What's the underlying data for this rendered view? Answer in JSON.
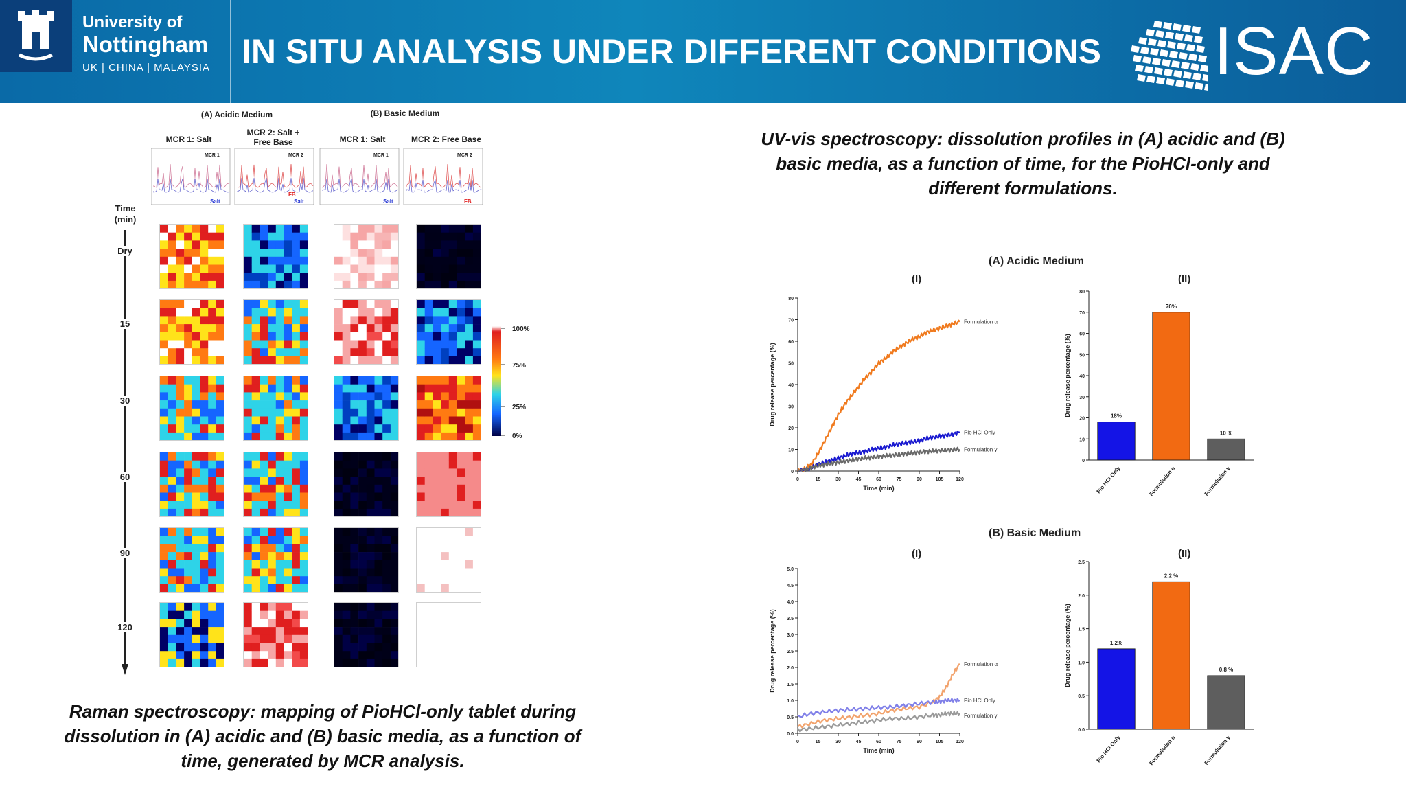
{
  "header": {
    "uni_line1": "University of",
    "uni_line2": "Nottingham",
    "uni_line3": "UK | CHINA | MALAYSIA",
    "title": "IN SITU ANALYSIS UNDER DIFFERENT CONDITIONS",
    "logo_text": "ISAC"
  },
  "raman": {
    "medium_a": "(A) Acidic Medium",
    "medium_b": "(B) Basic Medium",
    "columns": [
      "MCR 1: Salt",
      "MCR 2: Salt + Free Base",
      "MCR 1: Salt",
      "MCR 2: Free Base"
    ],
    "spectrum_tags": [
      "MCR 1",
      "MCR 2",
      "MCR 1",
      "MCR 2"
    ],
    "spectrum_labels": [
      "Salt",
      "FB",
      "Salt",
      "Salt",
      "FB"
    ],
    "time_title": "Time (min)",
    "times": [
      "Dry",
      "15",
      "30",
      "60",
      "90",
      "120"
    ],
    "colorbar": [
      "100%",
      "75%",
      "25%",
      "0%"
    ],
    "caption": "Raman spectroscopy: mapping of PioHCl-only tablet during dissolution in (A) acidic and (B) basic media, as a function of time, generated by MCR analysis.",
    "colors": {
      "deep": "#000066",
      "blue": "#1565ff",
      "cyan": "#2ed3e8",
      "yellow": "#ffe31a",
      "orange": "#ff7a12",
      "red": "#e01f1f",
      "pink": "#f6a6a6"
    }
  },
  "uv_caption": "UV-vis spectroscopy: dissolution profiles in (A) acidic and (B) basic media, as a function of time, for the PioHCl-only and different formulations.",
  "chart_data": [
    {
      "type": "line",
      "panel": "(A) Acidic Medium (I)",
      "heading": "(A) Acidic Medium",
      "sublabel": "(I)",
      "xlabel": "Time (min)",
      "ylabel": "Drug release percentage (%)",
      "xlim": [
        0,
        120
      ],
      "ylim": [
        0,
        80
      ],
      "xticks": [
        0,
        15,
        30,
        45,
        60,
        75,
        90,
        105,
        120
      ],
      "yticks": [
        0,
        10,
        20,
        30,
        40,
        50,
        60,
        70,
        80
      ],
      "x": [
        0,
        5,
        10,
        15,
        20,
        25,
        30,
        35,
        40,
        45,
        50,
        55,
        60,
        65,
        70,
        75,
        80,
        85,
        90,
        95,
        100,
        105,
        110,
        115,
        120
      ],
      "series": [
        {
          "name": "Formulation α",
          "color": "#f07a1e",
          "values": [
            0,
            1,
            3,
            8,
            14,
            20,
            26,
            31,
            35,
            39,
            43,
            46,
            50,
            52,
            55,
            57,
            59,
            61,
            62,
            64,
            65,
            66,
            67,
            68,
            69
          ]
        },
        {
          "name": "Pio HCl Only",
          "color": "#1a1ad0",
          "values": [
            0,
            0.5,
            1.5,
            3,
            4,
            5,
            6,
            7,
            8,
            8.5,
            9,
            10,
            10.5,
            11,
            12,
            12.5,
            13,
            13.5,
            14,
            15,
            15.5,
            16,
            16.5,
            17,
            18
          ]
        },
        {
          "name": "Formulation γ",
          "color": "#6a6a6a",
          "values": [
            0,
            0.5,
            1.5,
            2.5,
            3,
            3.5,
            4,
            4.5,
            5,
            5.5,
            6,
            6.3,
            6.6,
            7,
            7.3,
            7.6,
            8,
            8.3,
            8.6,
            9,
            9.2,
            9.4,
            9.6,
            9.8,
            10
          ]
        }
      ]
    },
    {
      "type": "bar",
      "panel": "(A) Acidic Medium (II)",
      "sublabel": "(II)",
      "ylabel": "Drug release percentage (%)",
      "ylim": [
        0,
        80
      ],
      "yticks": [
        0,
        10,
        20,
        30,
        40,
        50,
        60,
        70,
        80
      ],
      "categories": [
        "Pio HCl Only",
        "Formulation α",
        "Formulation γ"
      ],
      "values": [
        18,
        70,
        10
      ],
      "value_labels": [
        "18%",
        "70%",
        "10 %"
      ],
      "colors": [
        "#1414e6",
        "#f26a12",
        "#5e5e5e"
      ]
    },
    {
      "type": "line",
      "panel": "(B) Basic Medium (I)",
      "heading": "(B) Basic Medium",
      "sublabel": "(I)",
      "xlabel": "Time (min)",
      "ylabel": "Drug release percentage (%)",
      "xlim": [
        0,
        120
      ],
      "ylim": [
        0,
        5
      ],
      "xticks": [
        0,
        15,
        30,
        45,
        60,
        75,
        90,
        105,
        120
      ],
      "yticks": [
        0.0,
        0.5,
        1.0,
        1.5,
        2.0,
        2.5,
        3.0,
        3.5,
        4.0,
        4.5,
        5.0
      ],
      "ytick_labels": [
        "0.0",
        "0.5",
        "1.0",
        "1.5",
        "2.0",
        "2.5",
        "3.0",
        "3.5",
        "4.0",
        "4.5",
        "5.0"
      ],
      "x": [
        0,
        10,
        20,
        30,
        40,
        50,
        60,
        70,
        80,
        90,
        100,
        105,
        110,
        115,
        120
      ],
      "series": [
        {
          "name": "Formulation α",
          "color": "#f2a36d",
          "values": [
            0.2,
            0.3,
            0.4,
            0.45,
            0.5,
            0.55,
            0.6,
            0.7,
            0.75,
            0.8,
            0.95,
            1.1,
            1.4,
            1.8,
            2.1
          ]
        },
        {
          "name": "Pio HCl Only",
          "color": "#8080e8",
          "values": [
            0.5,
            0.6,
            0.65,
            0.7,
            0.72,
            0.75,
            0.78,
            0.8,
            0.85,
            0.9,
            0.95,
            0.95,
            1.0,
            1.0,
            1.0
          ]
        },
        {
          "name": "Formulation γ",
          "color": "#9a9a9a",
          "values": [
            0.1,
            0.15,
            0.2,
            0.25,
            0.3,
            0.35,
            0.4,
            0.45,
            0.45,
            0.5,
            0.55,
            0.55,
            0.6,
            0.6,
            0.6
          ]
        }
      ]
    },
    {
      "type": "bar",
      "panel": "(B) Basic Medium (II)",
      "sublabel": "(II)",
      "ylabel": "Drug release percentage (%)",
      "ylim": [
        0,
        2.5
      ],
      "yticks": [
        0.0,
        0.5,
        1.0,
        1.5,
        2.0,
        2.5
      ],
      "ytick_labels": [
        "0.0",
        "0.5",
        "1.0",
        "1.5",
        "2.0",
        "2.5"
      ],
      "categories": [
        "Pio HCl Only",
        "Formulation α",
        "Formulation γ"
      ],
      "values": [
        1.2,
        2.2,
        0.8
      ],
      "value_labels": [
        "1.2%",
        "2.2 %",
        "0.8 %"
      ],
      "colors": [
        "#1414e6",
        "#f26a12",
        "#5e5e5e"
      ]
    }
  ]
}
